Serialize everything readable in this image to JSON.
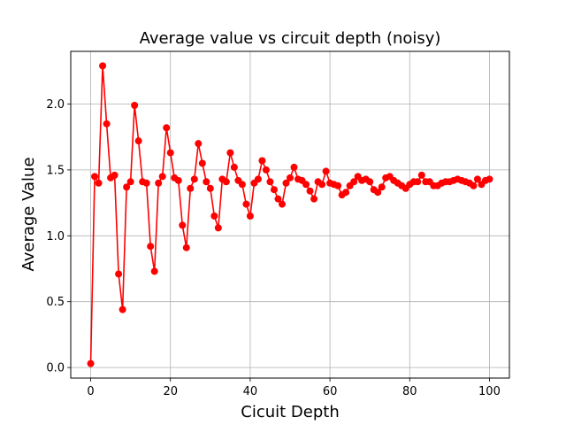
{
  "chart_data": {
    "type": "line",
    "title": "Average value vs circuit depth (noisy)",
    "xlabel": "Cicuit Depth",
    "ylabel": "Average Value",
    "xlim": [
      -5,
      105
    ],
    "ylim": [
      -0.08,
      2.4
    ],
    "xticks": [
      0,
      20,
      40,
      60,
      80,
      100
    ],
    "yticks": [
      0.0,
      0.5,
      1.0,
      1.5,
      2.0
    ],
    "xtick_labels": [
      "0",
      "20",
      "40",
      "60",
      "80",
      "100"
    ],
    "ytick_labels": [
      "0.0",
      "0.5",
      "1.0",
      "1.5",
      "2.0"
    ],
    "grid": true,
    "series": [
      {
        "color": "#ff0000",
        "marker": "circle",
        "x": [
          0,
          1,
          2,
          3,
          4,
          5,
          6,
          7,
          8,
          9,
          10,
          11,
          12,
          13,
          14,
          15,
          16,
          17,
          18,
          19,
          20,
          21,
          22,
          23,
          24,
          25,
          26,
          27,
          28,
          29,
          30,
          31,
          32,
          33,
          34,
          35,
          36,
          37,
          38,
          39,
          40,
          41,
          42,
          43,
          44,
          45,
          46,
          47,
          48,
          49,
          50,
          51,
          52,
          53,
          54,
          55,
          56,
          57,
          58,
          59,
          60,
          61,
          62,
          63,
          64,
          65,
          66,
          67,
          68,
          69,
          70,
          71,
          72,
          73,
          74,
          75,
          76,
          77,
          78,
          79,
          80,
          81,
          82,
          83,
          84,
          85,
          86,
          87,
          88,
          89,
          90,
          91,
          92,
          93,
          94,
          95,
          96,
          97,
          98,
          99,
          100
        ],
        "values": [
          0.03,
          1.45,
          1.4,
          2.29,
          1.85,
          1.44,
          1.46,
          0.71,
          0.44,
          1.37,
          1.41,
          1.99,
          1.72,
          1.41,
          1.4,
          0.92,
          0.73,
          1.4,
          1.45,
          1.82,
          1.63,
          1.44,
          1.42,
          1.08,
          0.91,
          1.36,
          1.43,
          1.7,
          1.55,
          1.41,
          1.36,
          1.15,
          1.06,
          1.43,
          1.41,
          1.63,
          1.52,
          1.42,
          1.39,
          1.24,
          1.15,
          1.4,
          1.43,
          1.57,
          1.5,
          1.41,
          1.35,
          1.28,
          1.24,
          1.4,
          1.44,
          1.52,
          1.43,
          1.42,
          1.39,
          1.34,
          1.28,
          1.41,
          1.39,
          1.49,
          1.4,
          1.39,
          1.38,
          1.31,
          1.33,
          1.38,
          1.41,
          1.45,
          1.42,
          1.43,
          1.41,
          1.35,
          1.33,
          1.37,
          1.44,
          1.45,
          1.42,
          1.4,
          1.38,
          1.36,
          1.39,
          1.41,
          1.41,
          1.46,
          1.41,
          1.41,
          1.38,
          1.38,
          1.4,
          1.41,
          1.41,
          1.42,
          1.43,
          1.42,
          1.41,
          1.4,
          1.38,
          1.43,
          1.39,
          1.42,
          1.43
        ]
      }
    ]
  }
}
